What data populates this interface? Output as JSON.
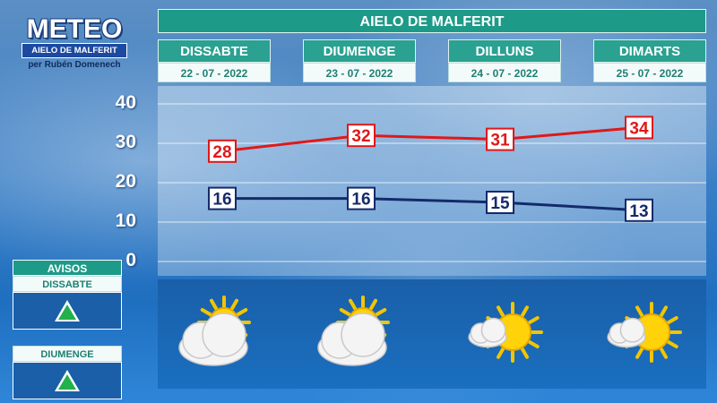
{
  "logo": {
    "title": "METEO",
    "subtitle": "AIELO DE MALFERIT",
    "author": "per Rubén Domenech"
  },
  "header": {
    "title": "AIELO DE MALFERIT"
  },
  "days": [
    {
      "name": "DISSABTE",
      "date": "22 - 07 - 2022",
      "icon": "partly-cloudy-icon"
    },
    {
      "name": "DIUMENGE",
      "date": "23 - 07 - 2022",
      "icon": "partly-cloudy-icon"
    },
    {
      "name": "DILLUNS",
      "date": "24 - 07 - 2022",
      "icon": "mostly-sunny-icon"
    },
    {
      "name": "DIMARTS",
      "date": "25 - 07 - 2022",
      "icon": "mostly-sunny-icon"
    }
  ],
  "y_ticks": [
    "40",
    "30",
    "20",
    "10",
    "0"
  ],
  "chart_data": {
    "type": "line",
    "categories": [
      "DISSABTE",
      "DIUMENGE",
      "DILLUNS",
      "DIMARTS"
    ],
    "series": [
      {
        "values": [
          28,
          32,
          31,
          34
        ],
        "color": "#e01818"
      },
      {
        "values": [
          16,
          16,
          15,
          13
        ],
        "color": "#142a6b"
      }
    ],
    "ylim": [
      0,
      40
    ],
    "grid": true
  },
  "avisos": {
    "title": "AVISOS",
    "items": [
      {
        "day": "DISSABTE",
        "level": "green",
        "icon": "warning-triangle-icon"
      },
      {
        "day": "DIUMENGE",
        "level": "green",
        "icon": "warning-triangle-icon"
      }
    ]
  },
  "colors": {
    "teal": "#1e9a88",
    "max_line": "#e01818",
    "min_line": "#142a6b",
    "warning_green": "#22b14c"
  }
}
